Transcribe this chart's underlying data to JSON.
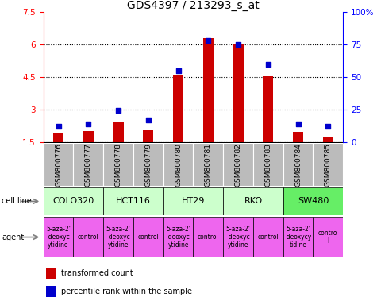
{
  "title": "GDS4397 / 213293_s_at",
  "samples": [
    "GSM800776",
    "GSM800777",
    "GSM800778",
    "GSM800779",
    "GSM800780",
    "GSM800781",
    "GSM800782",
    "GSM800783",
    "GSM800784",
    "GSM800785"
  ],
  "transformed_count": [
    1.9,
    2.0,
    2.4,
    2.05,
    4.6,
    6.3,
    6.05,
    4.55,
    1.95,
    1.7
  ],
  "percentile_rank": [
    12,
    14,
    24,
    17,
    55,
    78,
    75,
    60,
    14,
    12
  ],
  "ylim_left": [
    1.5,
    7.5
  ],
  "ylim_right": [
    0,
    100
  ],
  "yticks_left": [
    1.5,
    3.0,
    4.5,
    6.0,
    7.5
  ],
  "yticks_right": [
    0,
    25,
    50,
    75,
    100
  ],
  "ytick_labels_left": [
    "1.5",
    "3",
    "4.5",
    "6",
    "7.5"
  ],
  "ytick_labels_right": [
    "0",
    "25",
    "50",
    "75",
    "100%"
  ],
  "cell_lines": [
    {
      "label": "COLO320",
      "start": 0,
      "end": 2,
      "color": "#ccffcc"
    },
    {
      "label": "HCT116",
      "start": 2,
      "end": 4,
      "color": "#ccffcc"
    },
    {
      "label": "HT29",
      "start": 4,
      "end": 6,
      "color": "#ccffcc"
    },
    {
      "label": "RKO",
      "start": 6,
      "end": 8,
      "color": "#ccffcc"
    },
    {
      "label": "SW480",
      "start": 8,
      "end": 10,
      "color": "#66ee66"
    }
  ],
  "agents": [
    {
      "label": "5-aza-2'\n-deoxyc\nytidine",
      "start": 0,
      "end": 1,
      "color": "#ee66ee"
    },
    {
      "label": "control",
      "start": 1,
      "end": 2,
      "color": "#ee66ee"
    },
    {
      "label": "5-aza-2'\n-deoxyc\nytidine",
      "start": 2,
      "end": 3,
      "color": "#ee66ee"
    },
    {
      "label": "control",
      "start": 3,
      "end": 4,
      "color": "#ee66ee"
    },
    {
      "label": "5-aza-2'\n-deoxyc\nytidine",
      "start": 4,
      "end": 5,
      "color": "#ee66ee"
    },
    {
      "label": "control",
      "start": 5,
      "end": 6,
      "color": "#ee66ee"
    },
    {
      "label": "5-aza-2'\n-deoxyc\nytidine",
      "start": 6,
      "end": 7,
      "color": "#ee66ee"
    },
    {
      "label": "control",
      "start": 7,
      "end": 8,
      "color": "#ee66ee"
    },
    {
      "label": "5-aza-2'\n-deoxycy\ntidine",
      "start": 8,
      "end": 9,
      "color": "#ee66ee"
    },
    {
      "label": "contro\nl",
      "start": 9,
      "end": 10,
      "color": "#ee66ee"
    }
  ],
  "bar_color": "#cc0000",
  "dot_color": "#0000cc",
  "sample_bg_color": "#bbbbbb",
  "bar_width": 0.35,
  "dot_size": 22,
  "legend_bar_label": "transformed count",
  "legend_dot_label": "percentile rank within the sample",
  "cell_line_label": "cell line",
  "agent_label": "agent",
  "title_fontsize": 10,
  "tick_fontsize": 7.5,
  "label_fontsize": 7,
  "sample_fontsize": 6.5,
  "cell_fontsize": 8,
  "agent_fontsize": 5.5
}
